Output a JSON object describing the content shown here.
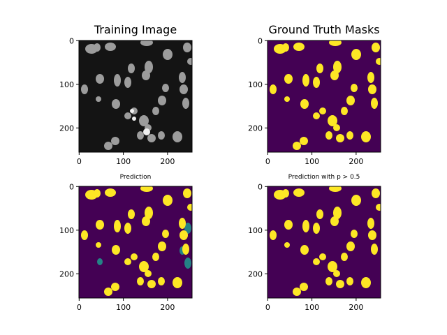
{
  "figure": {
    "panels": [
      {
        "title": "Training Image",
        "kind": "grayscale",
        "xticks": [
          "0",
          "100",
          "200"
        ],
        "yticks": [
          "0",
          "100",
          "200"
        ],
        "colors": {
          "background": "#141414",
          "cell": "#b4b4b4",
          "bright_cell": "#f0f0f0"
        }
      },
      {
        "title": "Ground Truth Masks",
        "kind": "binary-mask",
        "xticks": [
          "0",
          "100",
          "200"
        ],
        "yticks": [
          "0",
          "100",
          "200"
        ],
        "colors": {
          "background": "#440154",
          "cell": "#fde725"
        }
      },
      {
        "title": "Prediction",
        "kind": "probability-map",
        "xticks": [
          "0",
          "100",
          "200"
        ],
        "yticks": [
          "0",
          "100",
          "200"
        ],
        "colors": {
          "background": "#440154",
          "cell": "#fde725",
          "edge": "#21918c"
        }
      },
      {
        "title": "Prediction with p > 0.5",
        "kind": "binary-mask",
        "xticks": [
          "0",
          "100",
          "200"
        ],
        "yticks": [
          "0",
          "100",
          "200"
        ],
        "colors": {
          "background": "#440154",
          "cell": "#fde725"
        }
      }
    ]
  }
}
